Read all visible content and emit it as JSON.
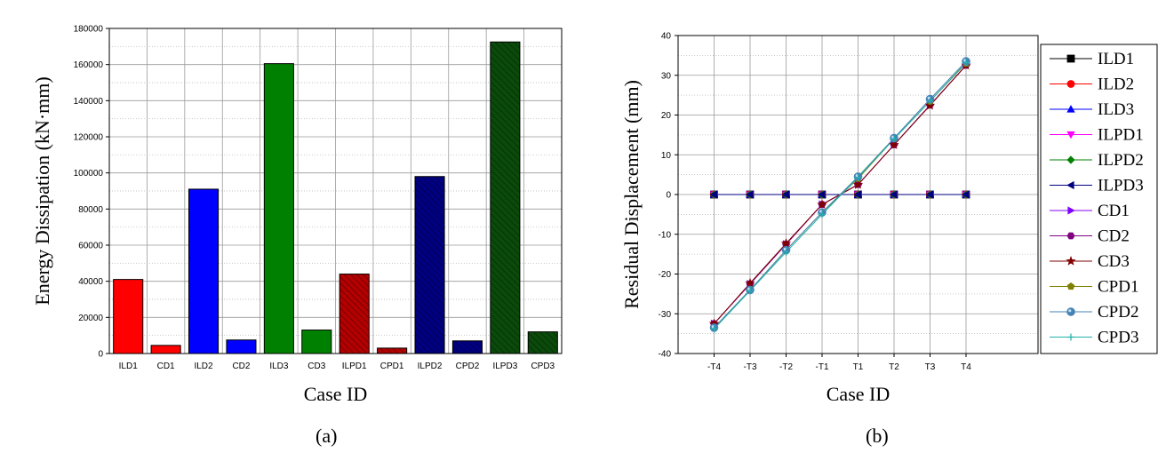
{
  "figure": {
    "caption_a": "(a)",
    "caption_b": "(b)"
  },
  "chart_data": [
    {
      "type": "bar",
      "xlabel": "Case ID",
      "ylabel": "Energy Dissipation (kN·mm)",
      "ylim": [
        0,
        180000
      ],
      "yticks": [
        0,
        20000,
        40000,
        60000,
        80000,
        100000,
        120000,
        140000,
        160000,
        180000
      ],
      "grid": true,
      "categories": [
        "ILD1",
        "CD1",
        "ILD2",
        "CD2",
        "ILD3",
        "CD3",
        "ILPD1",
        "CPD1",
        "ILPD2",
        "CPD2",
        "ILPD3",
        "CPD3"
      ],
      "values": [
        41000,
        4500,
        91000,
        7500,
        160500,
        13000,
        44000,
        3000,
        98000,
        7000,
        172500,
        12000
      ],
      "colors": [
        "#ff0000",
        "#ff0000",
        "#0000ff",
        "#0000ff",
        "#008000",
        "#008000",
        "#b30000",
        "#b30000",
        "#000080",
        "#000080",
        "#0a4a0a",
        "#0a4a0a"
      ],
      "hatched": [
        false,
        false,
        false,
        false,
        false,
        false,
        true,
        true,
        true,
        true,
        true,
        true
      ]
    },
    {
      "type": "line",
      "xlabel": "Case ID",
      "ylabel": "Residual Displacement (mm)",
      "ylim": [
        -40,
        40
      ],
      "yticks": [
        -40,
        -30,
        -20,
        -10,
        0,
        10,
        20,
        30,
        40
      ],
      "grid": true,
      "legend_position": "right",
      "x": [
        "-T4",
        "-T3",
        "-T2",
        "-T1",
        "T1",
        "T2",
        "T3",
        "T4"
      ],
      "series": [
        {
          "name": "ILD1",
          "color": "#000000",
          "marker": "square",
          "values": [
            0,
            0,
            0,
            0,
            0,
            0,
            0,
            0
          ]
        },
        {
          "name": "ILD2",
          "color": "#ff0000",
          "marker": "circle",
          "values": [
            0,
            0,
            0,
            0,
            0,
            0,
            0,
            0
          ]
        },
        {
          "name": "ILD3",
          "color": "#0000ff",
          "marker": "triangle-up",
          "values": [
            0,
            0,
            0,
            0,
            0,
            0,
            0,
            0
          ]
        },
        {
          "name": "ILPD1",
          "color": "#ff00ff",
          "marker": "triangle-down",
          "values": [
            0,
            0,
            0,
            0,
            0,
            0,
            0,
            0
          ]
        },
        {
          "name": "ILPD2",
          "color": "#008000",
          "marker": "diamond",
          "values": [
            0,
            0,
            0,
            0,
            0,
            0,
            0,
            0
          ]
        },
        {
          "name": "ILPD3",
          "color": "#000080",
          "marker": "triangle-left",
          "values": [
            0,
            0,
            0,
            0,
            0,
            0,
            0,
            0
          ]
        },
        {
          "name": "CD1",
          "color": "#8000ff",
          "marker": "triangle-right",
          "values": [
            -32.5,
            -22.5,
            -12.5,
            -2.5,
            2.5,
            12.5,
            22.5,
            32.5
          ]
        },
        {
          "name": "CD2",
          "color": "#800080",
          "marker": "hexagon",
          "values": [
            -32.5,
            -22.5,
            -12.5,
            -2.5,
            2.5,
            12.5,
            22.5,
            32.5
          ]
        },
        {
          "name": "CD3",
          "color": "#800000",
          "marker": "star",
          "values": [
            -32.5,
            -22.3,
            -12.3,
            -2.5,
            2.5,
            12.5,
            22.4,
            32.5
          ]
        },
        {
          "name": "CPD1",
          "color": "#808000",
          "marker": "pentagon",
          "values": [
            -33.5,
            -24,
            -14,
            -4.5,
            4,
            14,
            23.5,
            33
          ]
        },
        {
          "name": "CPD2",
          "color": "#4682b4",
          "marker": "circle-dot",
          "values": [
            -33.5,
            -24,
            -14,
            -4.5,
            4.5,
            14.2,
            24,
            33.5
          ]
        },
        {
          "name": "CPD3",
          "color": "#20b2aa",
          "marker": "plus",
          "values": [
            -33.8,
            -24.2,
            -14.5,
            -5,
            4.3,
            14,
            23.5,
            33.2
          ]
        }
      ]
    }
  ]
}
